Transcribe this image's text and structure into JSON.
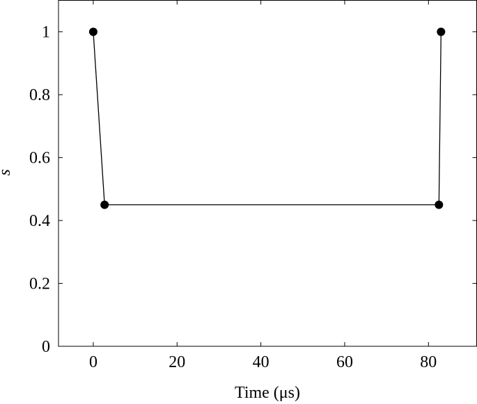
{
  "chart_data": {
    "type": "line",
    "x_label": "Time (μs)",
    "y_label": "s",
    "x": [
      0,
      2.7,
      82.5,
      83.0
    ],
    "series": [
      {
        "name": "s",
        "color": "#000000",
        "values": [
          1,
          0.45,
          0.45,
          1
        ]
      }
    ],
    "xlim": [
      -8.3,
      91.5
    ],
    "ylim": [
      0,
      1.1
    ],
    "xticks": [
      0,
      20,
      40,
      60,
      80
    ],
    "yticks": [
      0,
      0.2,
      0.4,
      0.6,
      0.8,
      1
    ],
    "grid": false
  }
}
